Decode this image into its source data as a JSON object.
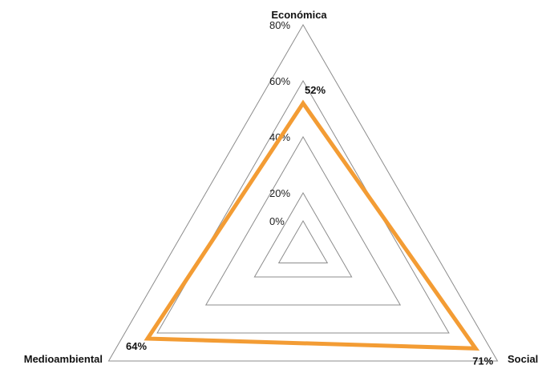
{
  "chart_data": {
    "type": "radar",
    "axes": [
      "Económica",
      "Social",
      "Medioambiental"
    ],
    "ticks": [
      "0%",
      "20%",
      "40%",
      "60%",
      "80%"
    ],
    "tick_values": [
      0,
      20,
      40,
      60,
      80
    ],
    "range": [
      0,
      80
    ],
    "grid": true,
    "legend": "none",
    "series": [
      {
        "values": [
          52,
          71,
          64
        ],
        "labels": [
          "52%",
          "71%",
          "64%"
        ],
        "color": "#f39c34"
      }
    ]
  }
}
